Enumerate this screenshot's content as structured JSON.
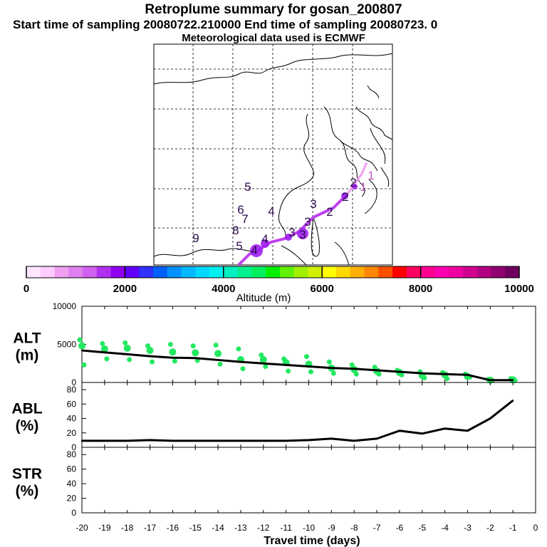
{
  "header": {
    "title": "Retroplume summary for gosan_200807",
    "sampling": "Start time of sampling 20080722.210000     End time of sampling 20080723.      0",
    "met": "Meteorological data used is ECMWF"
  },
  "map_markers": [
    {
      "label": "1",
      "color": "#c060c0"
    },
    {
      "label": "1",
      "color": "#c060c0"
    },
    {
      "label": "2",
      "color": "#2a0a4a"
    },
    {
      "label": "2",
      "color": "#2a0a4a"
    },
    {
      "label": "2",
      "color": "#2a0a4a"
    },
    {
      "label": "3",
      "color": "#2a0a4a"
    },
    {
      "label": "3",
      "color": "#2a0a4a"
    },
    {
      "label": "3",
      "color": "#2a0a4a"
    },
    {
      "label": "3",
      "color": "#2a0a4a"
    },
    {
      "label": "4",
      "color": "#2a0a4a"
    },
    {
      "label": "4",
      "color": "#2a0a4a"
    },
    {
      "label": "4",
      "color": "#2a0a4a"
    },
    {
      "label": "5",
      "color": "#2a0a4a"
    },
    {
      "label": "5",
      "color": "#2a0a4a"
    },
    {
      "label": "6",
      "color": "#2a0a4a"
    },
    {
      "label": "7",
      "color": "#2a0a4a"
    },
    {
      "label": "8",
      "color": "#2a0a4a"
    },
    {
      "label": "9",
      "color": "#2a0a4a"
    }
  ],
  "colorbar": {
    "label": "Altitude (m)",
    "ticks": [
      "0",
      "2000",
      "4000",
      "6000",
      "8000",
      "10000"
    ],
    "min": 0,
    "max": 10000,
    "colors": [
      "#ffe6ff",
      "#ffccff",
      "#f0a0f0",
      "#e080f0",
      "#d060f0",
      "#b030f0",
      "#9000f0",
      "#6000ff",
      "#3030ff",
      "#0060ff",
      "#0090ff",
      "#00b8ff",
      "#00d8ff",
      "#00f0f0",
      "#00f0c0",
      "#00f090",
      "#00f060",
      "#00f000",
      "#60f000",
      "#a0f000",
      "#d0f000",
      "#ffff00",
      "#ffd800",
      "#ffb000",
      "#ff8800",
      "#ff5000",
      "#ff0000",
      "#ff0060",
      "#ff0090",
      "#ff00b0",
      "#ee00a0",
      "#d00090",
      "#b00080",
      "#900070",
      "#700060"
    ]
  },
  "chart_data": [
    {
      "type": "line",
      "name": "ALT",
      "ylabel": "ALT",
      "yunit": "(m)",
      "ylim": [
        0,
        10000
      ],
      "yticks": [
        "10000",
        "5000",
        "0"
      ],
      "x": [
        -20,
        -19,
        -18,
        -17,
        -16,
        -15,
        -14,
        -13,
        -12,
        -11,
        -10,
        -9,
        -8,
        -7,
        -6,
        -5,
        -4,
        -3,
        -2,
        -1
      ],
      "values": [
        4200,
        3950,
        3700,
        3450,
        3250,
        3200,
        2950,
        2700,
        2500,
        2300,
        2100,
        1900,
        1800,
        1600,
        1400,
        1200,
        1100,
        1000,
        300,
        300
      ],
      "spread": [
        {
          "x": -20,
          "alts": [
            5600,
            4800,
            2300
          ]
        },
        {
          "x": -19,
          "alts": [
            5100,
            4400,
            3100
          ]
        },
        {
          "x": -18,
          "alts": [
            5200,
            4500,
            3000
          ]
        },
        {
          "x": -17,
          "alts": [
            4800,
            4200,
            2700
          ]
        },
        {
          "x": -16,
          "alts": [
            5000,
            4000,
            2800
          ]
        },
        {
          "x": -15,
          "alts": [
            4800,
            3900,
            2900
          ]
        },
        {
          "x": -14,
          "alts": [
            4900,
            3800,
            2400
          ]
        },
        {
          "x": -13,
          "alts": [
            4400,
            3000,
            1800
          ]
        },
        {
          "x": -12,
          "alts": [
            3600,
            3000,
            2100
          ]
        },
        {
          "x": -11,
          "alts": [
            3100,
            2600,
            1500
          ]
        },
        {
          "x": -10,
          "alts": [
            3400,
            2400,
            1400
          ]
        },
        {
          "x": -9,
          "alts": [
            2700,
            1900,
            1200
          ]
        },
        {
          "x": -8,
          "alts": [
            2300,
            1700,
            1100
          ]
        },
        {
          "x": -7,
          "alts": [
            2000,
            1500,
            1100
          ]
        },
        {
          "x": -6,
          "alts": [
            1600,
            1300,
            1000
          ]
        },
        {
          "x": -5,
          "alts": [
            1400,
            900,
            600
          ]
        },
        {
          "x": -4,
          "alts": [
            1300,
            1000,
            500
          ]
        },
        {
          "x": -3,
          "alts": [
            1100,
            800,
            700
          ]
        },
        {
          "x": -2,
          "alts": [
            400,
            300,
            250
          ]
        },
        {
          "x": -1,
          "alts": [
            500,
            350,
            250
          ]
        }
      ]
    },
    {
      "type": "line",
      "name": "ABL",
      "ylabel": "ABL",
      "yunit": "(%)",
      "ylim": [
        0,
        90
      ],
      "yticks": [
        "80",
        "60",
        "40",
        "20",
        "0"
      ],
      "x": [
        -20,
        -19,
        -18,
        -17,
        -16,
        -15,
        -14,
        -13,
        -12,
        -11,
        -10,
        -9,
        -8,
        -7,
        -6,
        -5,
        -4,
        -3,
        -2,
        -1
      ],
      "values": [
        9,
        9,
        9,
        10,
        9,
        9,
        9,
        9,
        9,
        9,
        10,
        12,
        9,
        12,
        23,
        19,
        26,
        23,
        40,
        65
      ]
    },
    {
      "type": "line",
      "name": "STR",
      "ylabel": "STR",
      "yunit": "(%)",
      "ylim": [
        0,
        90
      ],
      "yticks": [
        "80",
        "60",
        "40",
        "20",
        "0"
      ],
      "x": [],
      "values": []
    }
  ],
  "xaxis": {
    "label": "Travel time (days)",
    "ticks": [
      "-20",
      "-19",
      "-18",
      "-17",
      "-16",
      "-15",
      "-14",
      "-13",
      "-12",
      "-11",
      "-10",
      "-9",
      "-8",
      "-7",
      "-6",
      "-5",
      "-4",
      "-3",
      "-2",
      "-1",
      "0"
    ],
    "range": [
      -20,
      0
    ]
  }
}
